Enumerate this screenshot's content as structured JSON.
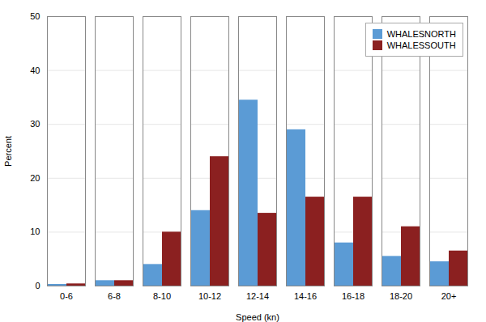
{
  "chart_data": {
    "type": "bar",
    "categories": [
      "0-6",
      "6-8",
      "8-10",
      "10-12",
      "12-14",
      "14-16",
      "16-18",
      "18-20",
      "20+"
    ],
    "series": [
      {
        "name": "WHALESNORTH",
        "color": "#5b9bd5",
        "values": [
          0.3,
          1.0,
          4.0,
          14.0,
          34.5,
          29.0,
          8.0,
          5.5,
          4.5
        ]
      },
      {
        "name": "WHALESSOUTH",
        "color": "#8b2020",
        "values": [
          0.4,
          1.0,
          10.0,
          24.0,
          13.5,
          16.5,
          16.5,
          11.0,
          6.5
        ]
      }
    ],
    "xlabel": "Speed (kn)",
    "ylabel": "Percent",
    "ylim": [
      0,
      50
    ],
    "yticks": [
      0,
      10,
      20,
      30,
      40,
      50
    ],
    "grid": true,
    "legend": "upper right"
  }
}
